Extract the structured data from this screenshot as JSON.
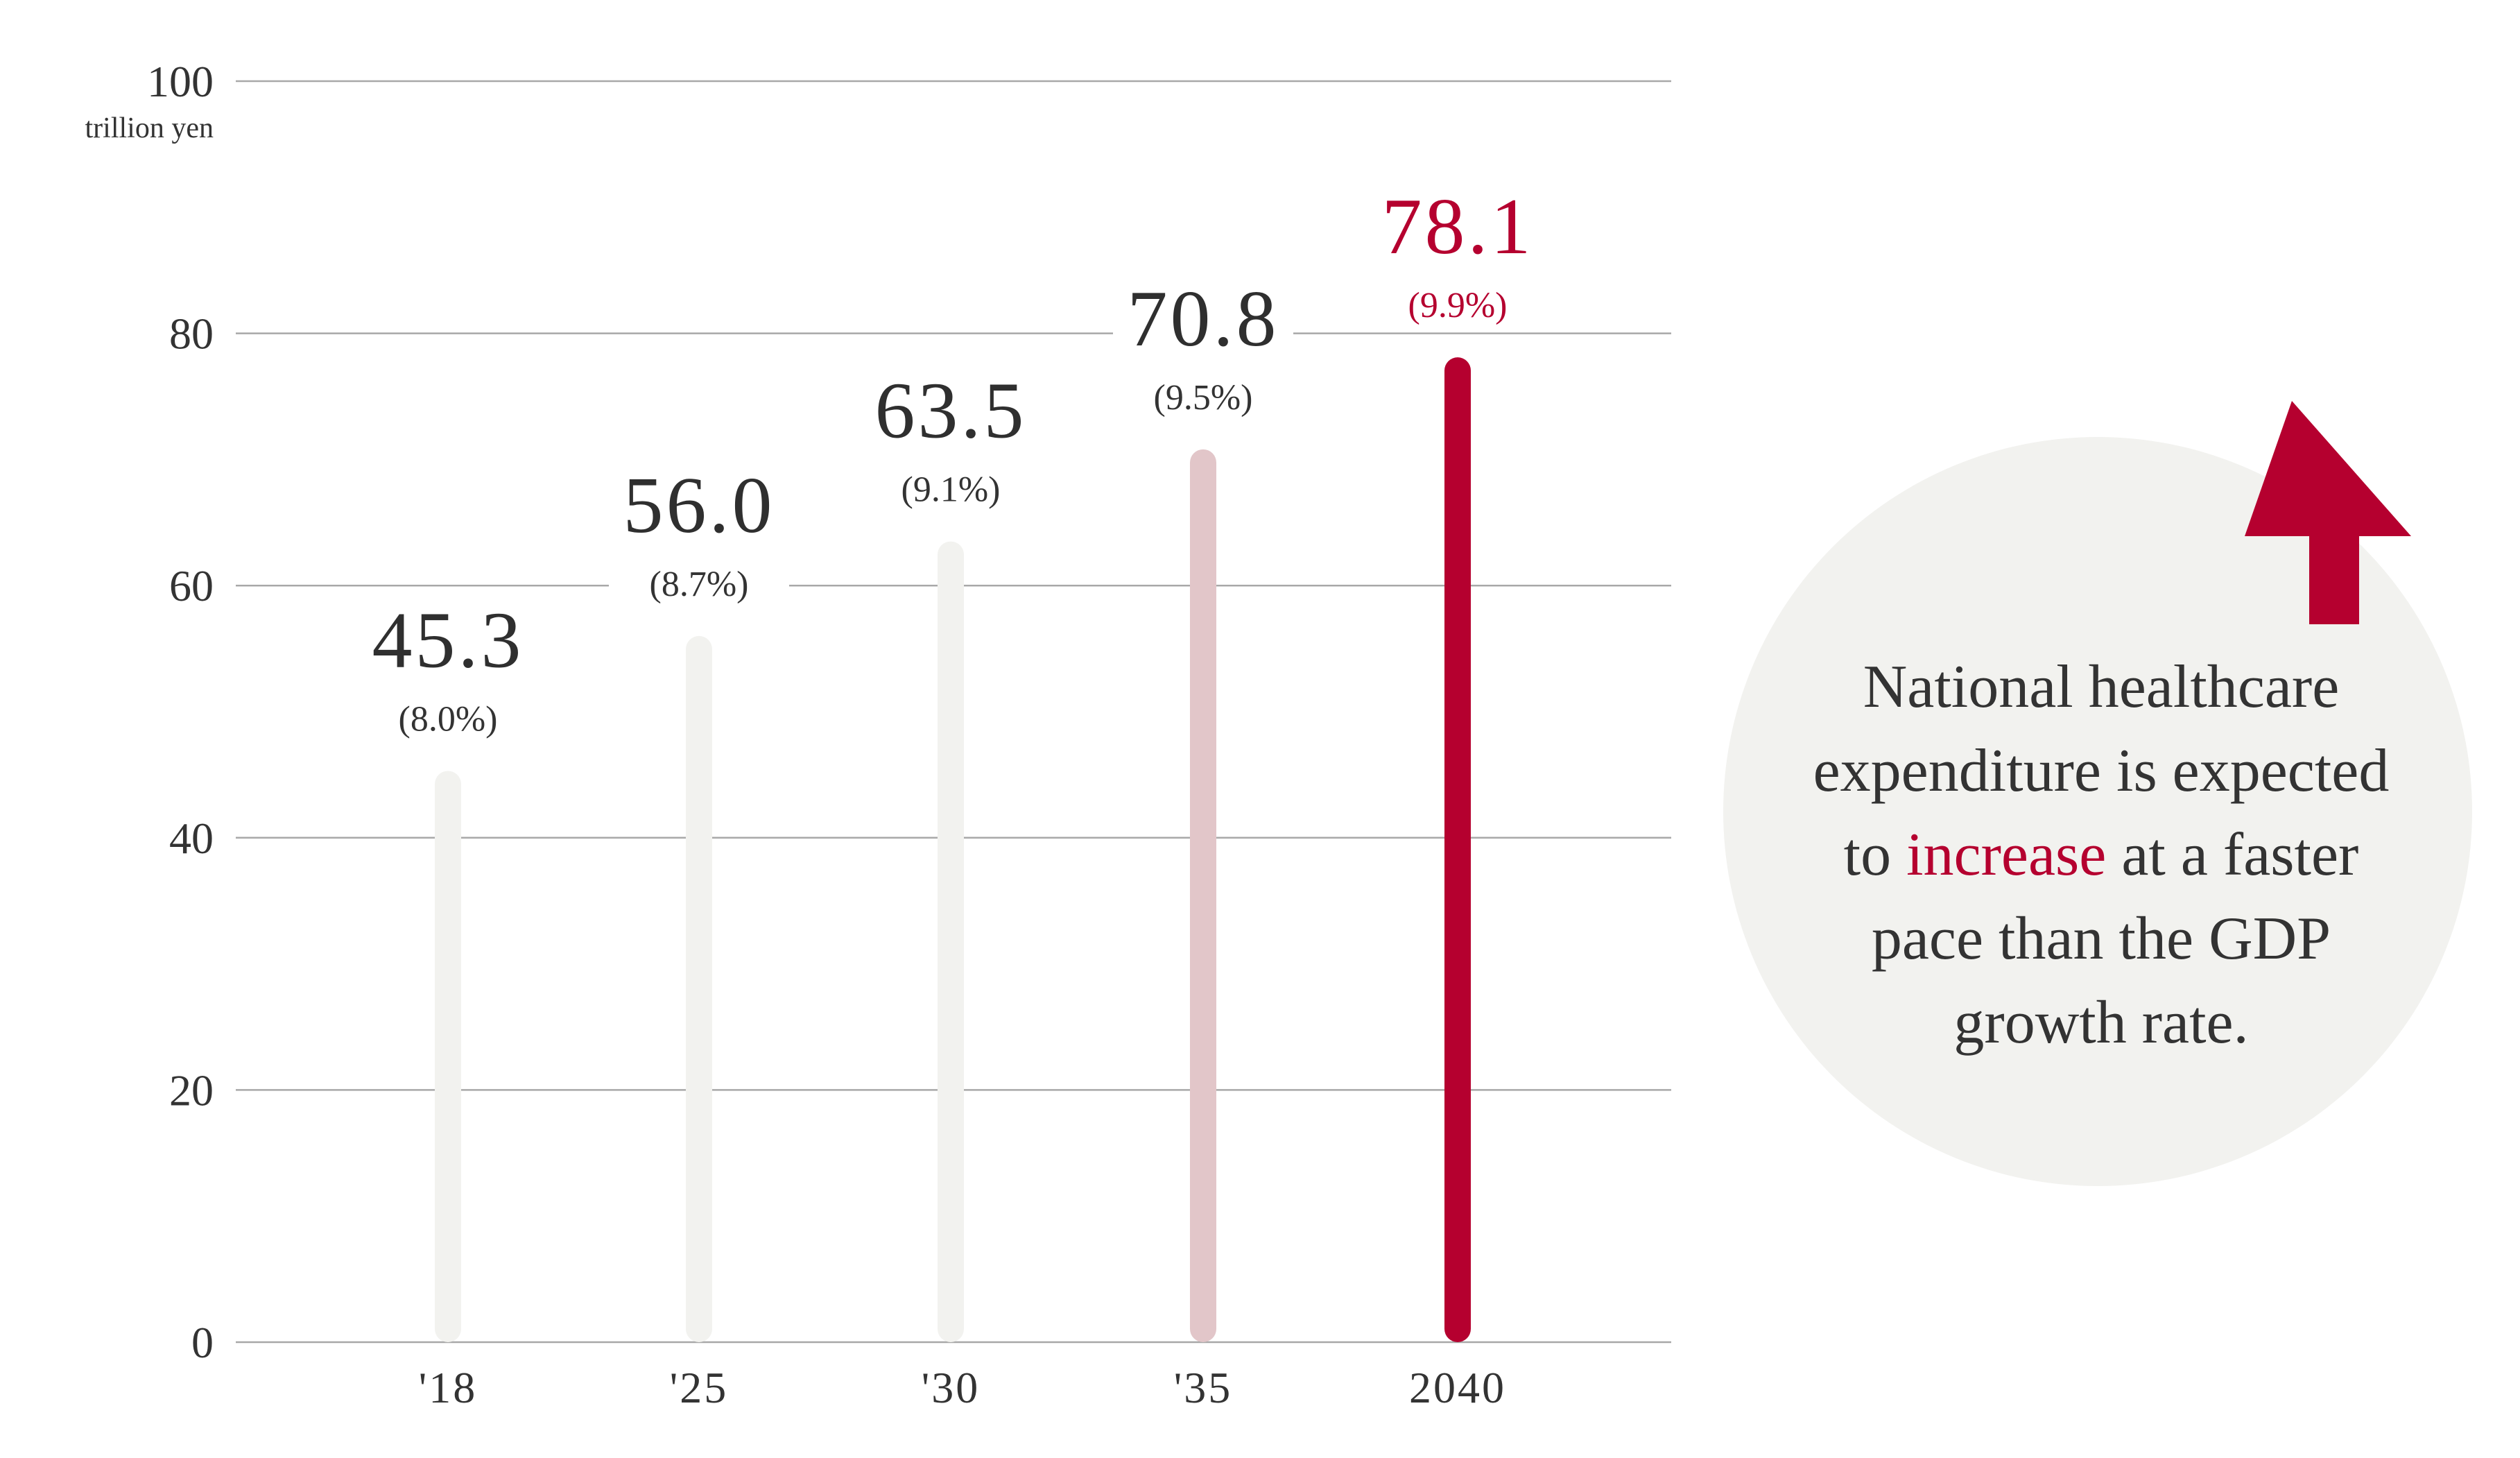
{
  "chart_data": {
    "type": "bar",
    "unit_label": "trillion yen",
    "ylim": [
      0,
      100
    ],
    "y_ticks": [
      "0",
      "20",
      "40",
      "60",
      "80",
      "100"
    ],
    "categories": [
      "'18",
      "'25",
      "'30",
      "'35",
      "2040"
    ],
    "values": [
      45.3,
      56.0,
      63.5,
      70.8,
      78.1
    ],
    "value_labels": [
      "45.3",
      "56.0",
      "63.5",
      "70.8",
      "78.1"
    ],
    "share_labels": [
      "(8.0%)",
      "(8.7%)",
      "(9.1%)",
      "(9.5%)",
      "(9.9%)"
    ],
    "bar_colors": [
      "#f2f2ef",
      "#f2f2ef",
      "#f2f2ef",
      "#e2c6c9",
      "#b5002f"
    ],
    "highlight_color": "#b5002f",
    "grid": true
  },
  "callout": {
    "line1": "National healthcare",
    "line2": "expenditure is expected",
    "line3_prefix": "to ",
    "line3_highlight": "increase",
    "line3_suffix": " at a faster",
    "line4": "pace than the GDP",
    "line5": "growth rate.",
    "arrow_icon": "up-arrow-icon",
    "bubble_color": "#f2f2ef",
    "arrow_color": "#b5002f"
  }
}
